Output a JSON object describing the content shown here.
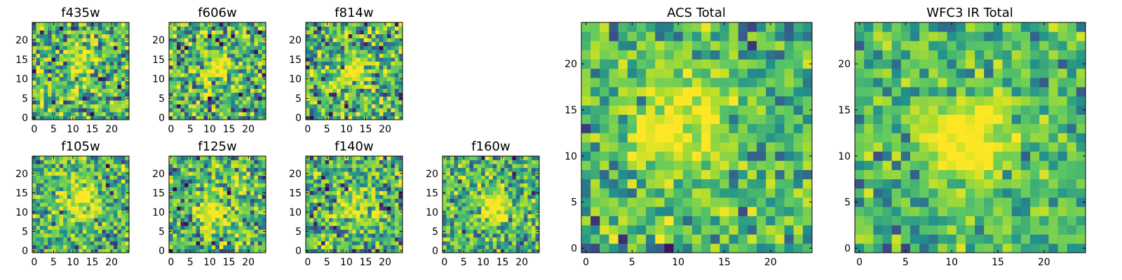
{
  "chart_data": [
    {
      "type": "heatmap",
      "title": "f435w",
      "xticks": [
        "0",
        "5",
        "10",
        "15",
        "20"
      ],
      "yticks": [
        "0",
        "5",
        "10",
        "15",
        "20"
      ],
      "xlim": [
        -0.5,
        24.5
      ],
      "ylim": [
        -0.5,
        24.5
      ],
      "grid_size": 25,
      "center": [
        12,
        15
      ],
      "peak": 0.45,
      "sigma": 2.5,
      "noise": 0.5,
      "seed": 11
    },
    {
      "type": "heatmap",
      "title": "f606w",
      "xticks": [
        "0",
        "5",
        "10",
        "15",
        "20"
      ],
      "yticks": [
        "0",
        "5",
        "10",
        "15",
        "20"
      ],
      "xlim": [
        -0.5,
        24.5
      ],
      "ylim": [
        -0.5,
        24.5
      ],
      "grid_size": 25,
      "center": [
        12,
        13
      ],
      "peak": 0.45,
      "sigma": 2.5,
      "noise": 0.5,
      "seed": 23
    },
    {
      "type": "heatmap",
      "title": "f814w",
      "xticks": [
        "0",
        "5",
        "10",
        "15",
        "20"
      ],
      "yticks": [
        "0",
        "5",
        "10",
        "15",
        "20"
      ],
      "xlim": [
        -0.5,
        24.5
      ],
      "ylim": [
        -0.5,
        24.5
      ],
      "grid_size": 25,
      "center": [
        12,
        12
      ],
      "peak": 0.5,
      "sigma": 2.5,
      "noise": 0.5,
      "seed": 37
    },
    {
      "type": "heatmap",
      "title": "f105w",
      "xticks": [
        "0",
        "5",
        "10",
        "15",
        "20"
      ],
      "yticks": [
        "0",
        "5",
        "10",
        "15",
        "20"
      ],
      "xlim": [
        -0.5,
        24.5
      ],
      "ylim": [
        -0.5,
        24.5
      ],
      "grid_size": 25,
      "center": [
        12,
        13
      ],
      "peak": 0.55,
      "sigma": 3.0,
      "noise": 0.4,
      "seed": 41
    },
    {
      "type": "heatmap",
      "title": "f125w",
      "xticks": [
        "0",
        "5",
        "10",
        "15",
        "20"
      ],
      "yticks": [
        "0",
        "5",
        "10",
        "15",
        "20"
      ],
      "xlim": [
        -0.5,
        24.5
      ],
      "ylim": [
        -0.5,
        24.5
      ],
      "grid_size": 25,
      "center": [
        11,
        10
      ],
      "peak": 0.5,
      "sigma": 3.0,
      "noise": 0.45,
      "seed": 53
    },
    {
      "type": "heatmap",
      "title": "f140w",
      "xticks": [
        "0",
        "5",
        "10",
        "15",
        "20"
      ],
      "yticks": [
        "0",
        "5",
        "10",
        "15",
        "20"
      ],
      "xlim": [
        -0.5,
        24.5
      ],
      "ylim": [
        -0.5,
        24.5
      ],
      "grid_size": 25,
      "center": [
        12,
        12
      ],
      "peak": 0.4,
      "sigma": 3.0,
      "noise": 0.45,
      "seed": 67
    },
    {
      "type": "heatmap",
      "title": "f160w",
      "xticks": [
        "0",
        "5",
        "10",
        "15",
        "20"
      ],
      "yticks": [
        "0",
        "5",
        "10",
        "15",
        "20"
      ],
      "xlim": [
        -0.5,
        24.5
      ],
      "ylim": [
        -0.5,
        24.5
      ],
      "grid_size": 25,
      "center": [
        13,
        11
      ],
      "peak": 0.6,
      "sigma": 2.5,
      "noise": 0.4,
      "seed": 79
    },
    {
      "type": "heatmap",
      "title": "ACS Total",
      "xticks": [
        "0",
        "5",
        "10",
        "15",
        "20"
      ],
      "yticks": [
        "0",
        "5",
        "10",
        "15",
        "20"
      ],
      "xlim": [
        -0.5,
        24.5
      ],
      "ylim": [
        -0.5,
        24.5
      ],
      "grid_size": 25,
      "center": [
        10,
        13
      ],
      "peak": 0.45,
      "sigma": 3.5,
      "noise": 0.35,
      "seed": 97
    },
    {
      "type": "heatmap",
      "title": "WFC3 IR Total",
      "xticks": [
        "0",
        "5",
        "10",
        "15",
        "20"
      ],
      "yticks": [
        "0",
        "5",
        "10",
        "15",
        "20"
      ],
      "xlim": [
        -0.5,
        24.5
      ],
      "ylim": [
        -0.5,
        24.5
      ],
      "grid_size": 25,
      "center": [
        12,
        12
      ],
      "peak": 0.65,
      "sigma": 3.0,
      "noise": 0.3,
      "seed": 113
    }
  ],
  "colors": {
    "colormap": [
      "#440154",
      "#3b528b",
      "#21918c",
      "#5ec962",
      "#b5de2b",
      "#fde725"
    ]
  }
}
